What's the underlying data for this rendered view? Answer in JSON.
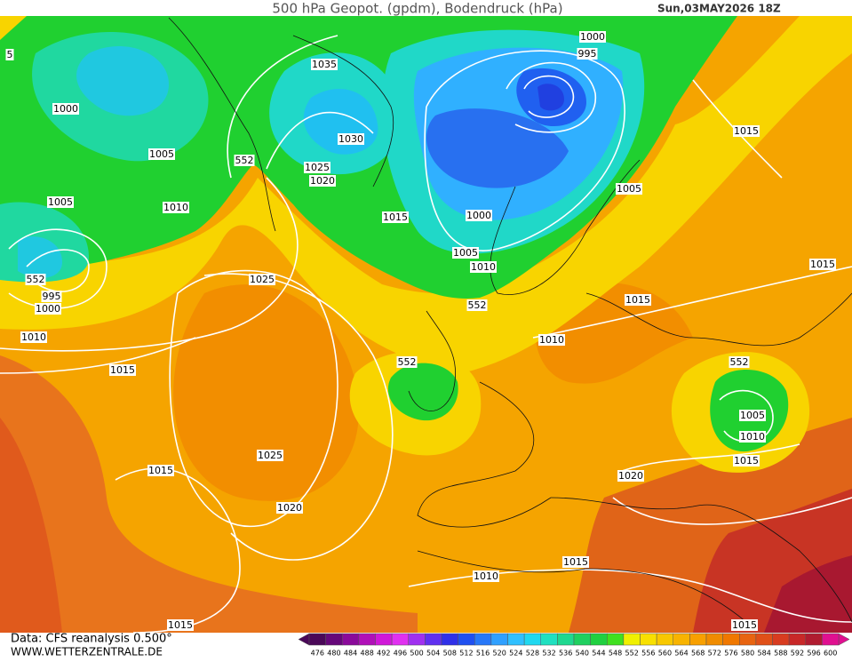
{
  "header": {
    "title": "500 hPa Geopot. (gpdm), Bodendruck (hPa)",
    "date": "Sun,03MAY2026 18Z"
  },
  "footer": {
    "source": "Data: CFS reanalysis 0.500°",
    "site": "WWW.WETTERZENTRALE.DE"
  },
  "contour_labels": [
    1000,
    995,
    1035,
    1000,
    1030,
    1015,
    1005,
    552,
    1025,
    1020,
    1005,
    1005,
    1010,
    1015,
    1000,
    1005,
    1010,
    1015,
    552,
    995,
    1025,
    1000,
    1015,
    552,
    1010,
    1010,
    552,
    552,
    1015,
    1005,
    1010,
    1015,
    1025,
    1015,
    1020,
    1020,
    1015,
    1010,
    1015,
    1015,
    5
  ],
  "legend": {
    "values": [
      476,
      480,
      484,
      488,
      492,
      496,
      500,
      504,
      508,
      512,
      516,
      520,
      524,
      528,
      532,
      536,
      540,
      544,
      548,
      552,
      556,
      560,
      564,
      568,
      572,
      576,
      580,
      584,
      588,
      592,
      596,
      600
    ],
    "colors": [
      "#4a0858",
      "#66087a",
      "#8a0a9a",
      "#b010b8",
      "#d018d8",
      "#e030f0",
      "#a030f0",
      "#6030f0",
      "#3030e8",
      "#2050f0",
      "#2878f8",
      "#30a0ff",
      "#30c0ff",
      "#20d8f0",
      "#20e0c0",
      "#20d890",
      "#20d060",
      "#20d040",
      "#40e020",
      "#f0f000",
      "#f8e000",
      "#f8c800",
      "#f8b400",
      "#f8a000",
      "#f08c00",
      "#f07800",
      "#e86410",
      "#e05018",
      "#d83c20",
      "#c82828",
      "#b01c30",
      "#e01090"
    ]
  }
}
